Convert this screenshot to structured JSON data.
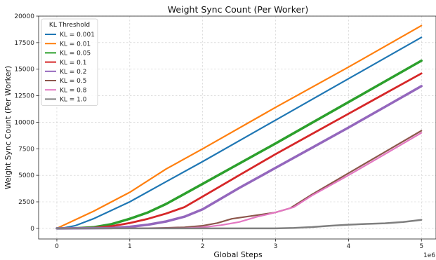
{
  "chart_data": {
    "type": "line",
    "title": "Weight Sync Count (Per Worker)",
    "xlabel": "Global Steps",
    "ylabel": "Weight Sync Count (Per Worker)",
    "x_multiplier_label": "1e6",
    "xlim": [
      -250000,
      5200000
    ],
    "ylim": [
      -1000,
      20000
    ],
    "xticks": [
      0,
      1000000,
      2000000,
      3000000,
      4000000,
      5000000
    ],
    "xtick_labels": [
      "0",
      "1",
      "2",
      "3",
      "4",
      "5"
    ],
    "yticks": [
      0,
      2500,
      5000,
      7500,
      10000,
      12500,
      15000,
      17500,
      20000
    ],
    "ytick_labels": [
      "0",
      "2500",
      "5000",
      "7500",
      "10000",
      "12500",
      "15000",
      "17500",
      "20000"
    ],
    "grid": true,
    "legend": {
      "title": "KL Threshold",
      "position": "top-left"
    },
    "series": [
      {
        "name": "KL = 0.001",
        "color": "#1f77b4",
        "width": 2.2,
        "x": [
          0,
          100000,
          250000,
          500000,
          750000,
          1000000,
          1500000,
          2000000,
          3000000,
          4000000,
          5000000
        ],
        "y": [
          0,
          50,
          250,
          900,
          1700,
          2500,
          4400,
          6300,
          10200,
          14100,
          18000
        ]
      },
      {
        "name": "KL = 0.01",
        "color": "#ff7f0e",
        "width": 2.2,
        "x": [
          0,
          250000,
          500000,
          1000000,
          1500000,
          2000000,
          3000000,
          4000000,
          5000000
        ],
        "y": [
          0,
          800,
          1600,
          3400,
          5600,
          7500,
          11400,
          15200,
          19100
        ]
      },
      {
        "name": "KL = 0.05",
        "color": "#2ca02c",
        "width": 3.5,
        "x": [
          0,
          250000,
          500000,
          750000,
          1000000,
          1250000,
          1500000,
          2000000,
          3000000,
          4000000,
          5000000
        ],
        "y": [
          0,
          10,
          100,
          400,
          900,
          1500,
          2300,
          4200,
          8000,
          11900,
          15800
        ]
      },
      {
        "name": "KL = 0.1",
        "color": "#d62728",
        "width": 2.8,
        "x": [
          0,
          500000,
          750000,
          1000000,
          1250000,
          1500000,
          1750000,
          2000000,
          2500000,
          3000000,
          3500000,
          4000000,
          4500000,
          5000000
        ],
        "y": [
          0,
          50,
          200,
          500,
          900,
          1400,
          2000,
          3000,
          5000,
          7000,
          8900,
          10800,
          12700,
          14600
        ]
      },
      {
        "name": "KL = 0.2",
        "color": "#9467bd",
        "width": 3.5,
        "x": [
          0,
          750000,
          1000000,
          1250000,
          1500000,
          1750000,
          2000000,
          2500000,
          3000000,
          3500000,
          4000000,
          4500000,
          5000000
        ],
        "y": [
          0,
          30,
          150,
          350,
          650,
          1100,
          1800,
          3800,
          5700,
          7600,
          9500,
          11450,
          13400
        ]
      },
      {
        "name": "KL = 0.5",
        "color": "#8c564b",
        "width": 2.2,
        "x": [
          0,
          1250000,
          1500000,
          1750000,
          2000000,
          2200000,
          2400000,
          2600000,
          2800000,
          3000000,
          3200000,
          3500000,
          4000000,
          4500000,
          5000000
        ],
        "y": [
          0,
          20,
          50,
          100,
          250,
          500,
          900,
          1100,
          1300,
          1500,
          1900,
          3200,
          5200,
          7200,
          9200
        ]
      },
      {
        "name": "KL = 0.8",
        "color": "#e377c2",
        "width": 2.2,
        "x": [
          0,
          1750000,
          2000000,
          2250000,
          2500000,
          2750000,
          3000000,
          3250000,
          3500000,
          4000000,
          4500000,
          5000000
        ],
        "y": [
          0,
          20,
          100,
          300,
          600,
          1100,
          1500,
          2000,
          3100,
          5000,
          7000,
          9000
        ]
      },
      {
        "name": "KL = 1.0",
        "color": "#7f7f7f",
        "width": 2.5,
        "x": [
          0,
          3000000,
          3250000,
          3500000,
          3750000,
          4000000,
          4250000,
          4500000,
          4750000,
          5000000
        ],
        "y": [
          0,
          0,
          40,
          120,
          250,
          350,
          420,
          480,
          600,
          800
        ]
      }
    ]
  }
}
